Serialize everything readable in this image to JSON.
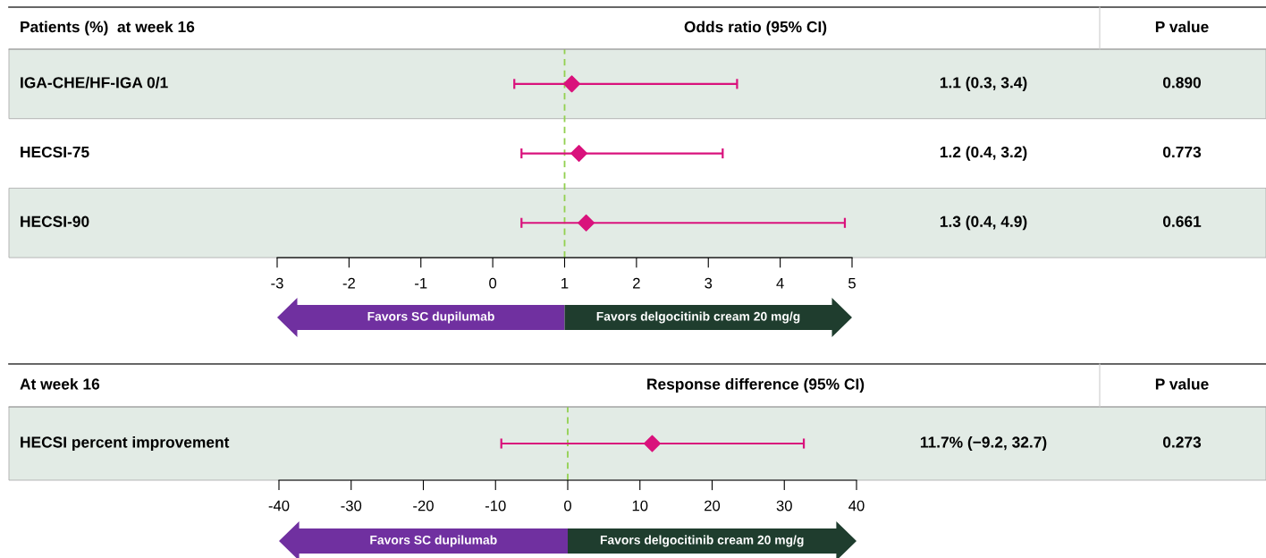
{
  "chart_data": [
    {
      "type": "scatter",
      "orientation": "horizontal",
      "ylabel": "Patients (%)  at week 16",
      "title": "Odds ratio (95% CI)",
      "categories": [
        "IGA-CHE/HF-IGA 0/1",
        "HECSI-75",
        "HECSI-90"
      ],
      "series": [
        {
          "color": "#d9127c",
          "values": [
            1.1,
            1.2,
            1.3
          ],
          "errors": [
            [
              0.3,
              3.4
            ],
            [
              0.4,
              3.2
            ],
            [
              0.4,
              4.9
            ]
          ],
          "value_labels": [
            "1.1 (0.3, 3.4)",
            "1.2 (0.4, 3.2)",
            "1.3 (0.4, 4.9)"
          ]
        }
      ],
      "marker": "diamond",
      "xlim": [
        -3,
        5
      ],
      "xticks": [
        -3,
        -2,
        -1,
        0,
        1,
        2,
        3,
        4,
        5
      ],
      "ref_lines": [
        {
          "axis": "x",
          "value": 1,
          "color": "#92d050",
          "line_style": "dashed"
        }
      ],
      "annotations": [
        "P value",
        "0.890",
        "0.773",
        "0.661",
        "Favors SC dupilumab",
        "Favors delgocitinib cream 20 mg/g"
      ],
      "grid": false
    },
    {
      "type": "scatter",
      "orientation": "horizontal",
      "ylabel": "At week 16",
      "title": "Response difference (95% CI)",
      "categories": [
        "HECSI percent improvement"
      ],
      "series": [
        {
          "color": "#d9127c",
          "values": [
            11.7
          ],
          "errors": [
            [
              -9.2,
              32.7
            ]
          ]
        }
      ],
      "marker": "diamond",
      "xlim": [
        -40,
        40
      ],
      "xticks": [
        -40,
        -30,
        -20,
        -10,
        0,
        10,
        20,
        30,
        40
      ],
      "ref_lines": [
        {
          "axis": "x",
          "value": 0,
          "color": "#92d050",
          "line_style": "dashed"
        }
      ],
      "annotations": [
        "P value",
        "0.273",
        "11.7% (−9.2, 32.7)",
        "Favors SC dupilumab",
        "Favors delgocitinib cream 20 mg/g"
      ],
      "grid": false
    }
  ]
}
